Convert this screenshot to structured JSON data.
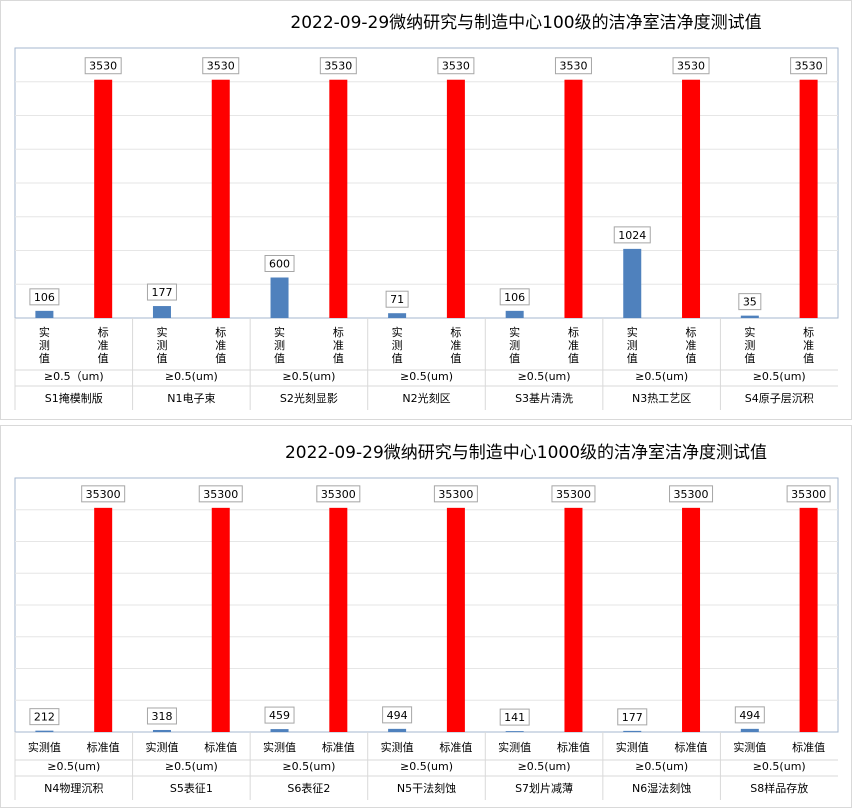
{
  "chart_data": [
    {
      "type": "bar",
      "title": "2022-09-29微纳研究与制造中心100级的洁净室洁净度测试值",
      "series_labels": [
        "实测值",
        "标准值"
      ],
      "size_label": "≥0.5（um)",
      "categories": [
        "S1掩模制版",
        "N1电子束",
        "S2光刻显影",
        "N2光刻区",
        "S3基片清洗",
        "N3热工艺区",
        "S4原子层沉积"
      ],
      "group_sub": [
        "≥0.5（um)",
        "≥0.5(um)",
        "≥0.5(um)",
        "≥0.5(um)",
        "≥0.5(um)",
        "≥0.5(um)",
        "≥0.5(um)"
      ],
      "series": [
        {
          "name": "实测值",
          "color": "#4f81bd",
          "values": [
            106,
            177,
            600,
            71,
            106,
            1024,
            35
          ]
        },
        {
          "name": "标准值",
          "color": "#ff0000",
          "values": [
            3530,
            3530,
            3530,
            3530,
            3530,
            3530,
            3530
          ]
        }
      ],
      "ylim": [
        0,
        4000
      ],
      "grid": true,
      "label_orientation": "vertical"
    },
    {
      "type": "bar",
      "title": "2022-09-29微纳研究与制造中心1000级的洁净室洁净度测试值",
      "series_labels": [
        "实测值",
        "标准值"
      ],
      "categories": [
        "N4物理沉积",
        "S5表征1",
        "S6表征2",
        "N5干法刻蚀",
        "S7划片减薄",
        "N6湿法刻蚀",
        "S8样品存放"
      ],
      "group_sub": [
        "≥0.5(um)",
        "≥0.5(um)",
        "≥0.5(um)",
        "≥0.5(um)",
        "≥0.5(um)",
        "≥0.5(um)",
        "≥0.5(um)"
      ],
      "series": [
        {
          "name": "实测值",
          "color": "#4f81bd",
          "values": [
            212,
            318,
            459,
            494,
            141,
            177,
            494
          ]
        },
        {
          "name": "标准值",
          "color": "#ff0000",
          "values": [
            35300,
            35300,
            35300,
            35300,
            35300,
            35300,
            35300
          ]
        }
      ],
      "ylim": [
        0,
        40000
      ],
      "grid": true,
      "label_orientation": "horizontal"
    }
  ]
}
